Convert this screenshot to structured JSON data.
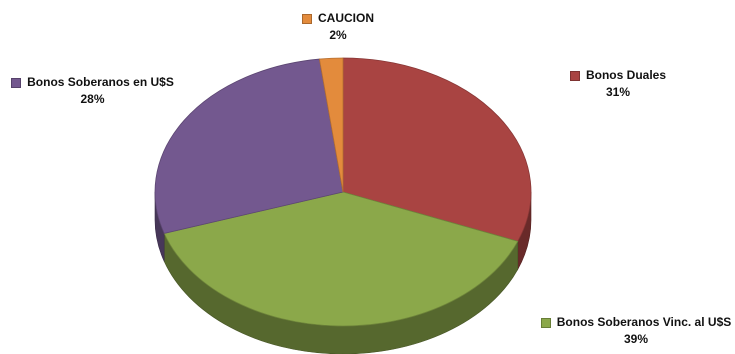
{
  "chart_data": {
    "type": "pie",
    "title": "",
    "legend": "labels beside slices",
    "slices": [
      {
        "name": "Bonos Duales",
        "value": 31,
        "label": "31%",
        "color": "#A94442"
      },
      {
        "name": "Bonos Soberanos Vinc. al U$S",
        "value": 39,
        "label": "39%",
        "color": "#8BA84A"
      },
      {
        "name": "Bonos Soberanos en U$S",
        "value": 28,
        "label": "28%",
        "color": "#73588F"
      },
      {
        "name": "CAUCION",
        "value": 2,
        "label": "2%",
        "color": "#E38B3C"
      }
    ]
  }
}
